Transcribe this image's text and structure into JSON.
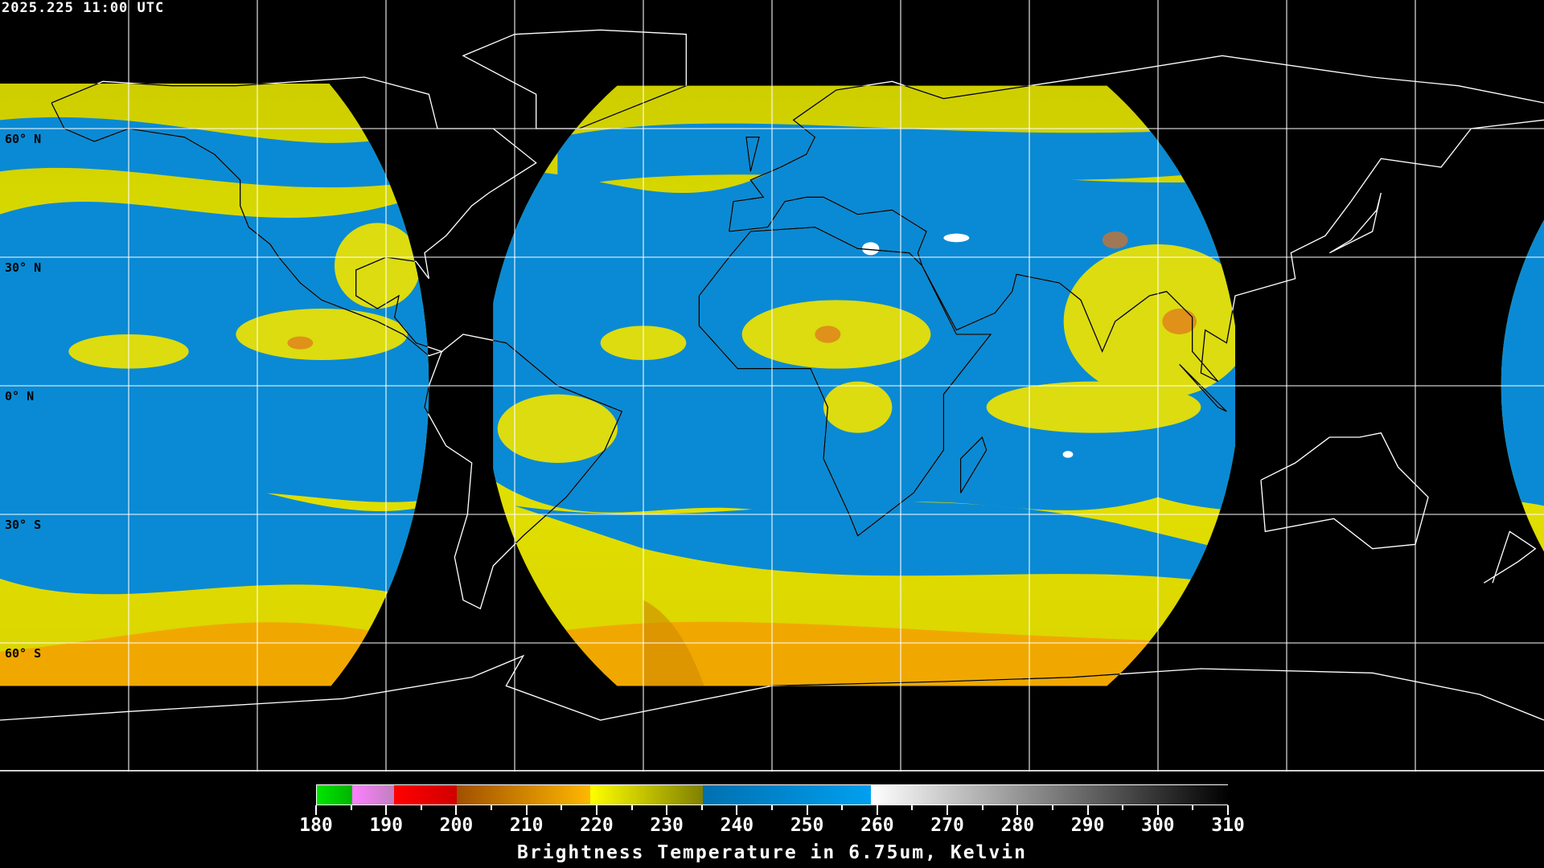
{
  "header": {
    "timestamp": "2025.225 11:00 UTC"
  },
  "map": {
    "projection": "equirectangular",
    "lat_labels": [
      {
        "lat": 60,
        "label": "60° N"
      },
      {
        "lat": 30,
        "label": "30° N"
      },
      {
        "lat": 0,
        "label": "0° N"
      },
      {
        "lat": -30,
        "label": "30° S"
      },
      {
        "lat": -60,
        "label": "60° S"
      }
    ],
    "grid_spacing_deg": 30,
    "colors": {
      "background": "#000000",
      "grid": "#ffffff",
      "coast_outside": "#ffffff",
      "coast_inside": "#000000"
    }
  },
  "colorbar": {
    "title": "Brightness Temperature in 6.75um, Kelvin",
    "min": 180,
    "max": 310,
    "tick_labels": [
      "180",
      "190",
      "200",
      "210",
      "220",
      "230",
      "240",
      "250",
      "260",
      "270",
      "280",
      "290",
      "300",
      "310"
    ],
    "segments": [
      {
        "from": 180,
        "to": 185,
        "colors": [
          "#00e600",
          "#00b400"
        ]
      },
      {
        "from": 185,
        "to": 191,
        "colors": [
          "#ff80ff",
          "#c080c0"
        ]
      },
      {
        "from": 191,
        "to": 200,
        "colors": [
          "#ff0000",
          "#d00000"
        ]
      },
      {
        "from": 200,
        "to": 219,
        "colors": [
          "#a05000",
          "#ffb800"
        ]
      },
      {
        "from": 219,
        "to": 235,
        "colors": [
          "#ffff00",
          "#808000"
        ]
      },
      {
        "from": 235,
        "to": 259,
        "colors": [
          "#0070b0",
          "#00a0f0"
        ]
      },
      {
        "from": 259,
        "to": 310,
        "colors": [
          "#ffffff",
          "#000000"
        ]
      }
    ]
  }
}
